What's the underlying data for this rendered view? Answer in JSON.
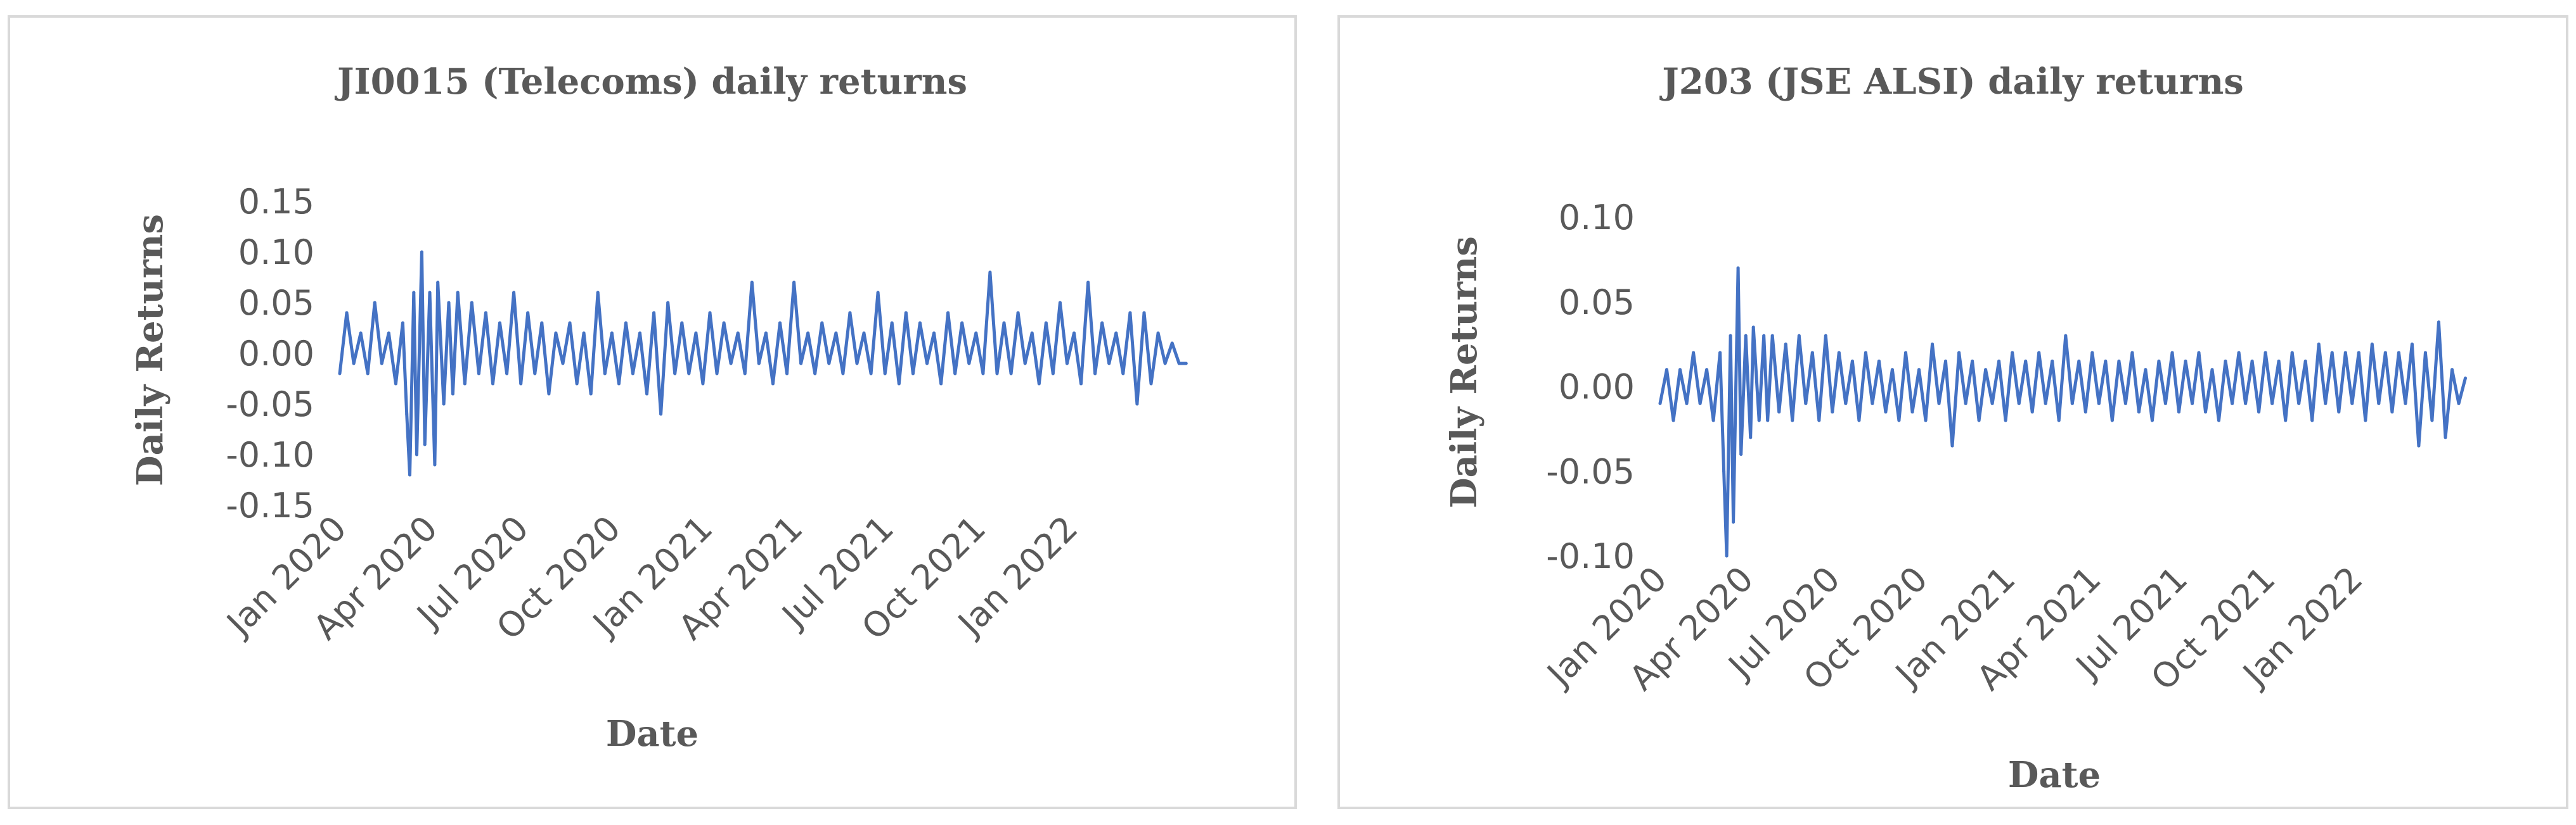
{
  "chart_data": [
    {
      "type": "line",
      "title": "JI0015 (Telecoms) daily returns",
      "xlabel": "Date",
      "ylabel": "Daily Returns",
      "ylim": [
        -0.15,
        0.15
      ],
      "yticks": [
        "0.15",
        "0.10",
        "0.05",
        "0.00",
        "-0.05",
        "-0.10",
        "-0.15"
      ],
      "xticks": [
        "Jan 2020",
        "Apr 2020",
        "Jul 2020",
        "Oct 2020",
        "Jan 2021",
        "Apr 2021",
        "Jul 2021",
        "Oct 2021",
        "Jan 2022"
      ],
      "xlim": [
        "2020-01-02",
        "2022-04-30"
      ],
      "color": "#4472c4",
      "series": [
        {
          "x": [
            "2020-01-02",
            "2020-01-09",
            "2020-01-16",
            "2020-01-23",
            "2020-01-30",
            "2020-02-06",
            "2020-02-13",
            "2020-02-20",
            "2020-02-27",
            "2020-03-05",
            "2020-03-09",
            "2020-03-12",
            "2020-03-16",
            "2020-03-19",
            "2020-03-24",
            "2020-03-27",
            "2020-04-01",
            "2020-04-06",
            "2020-04-09",
            "2020-04-15",
            "2020-04-20",
            "2020-04-24",
            "2020-04-29",
            "2020-05-06",
            "2020-05-13",
            "2020-05-20",
            "2020-05-27",
            "2020-06-03",
            "2020-06-10",
            "2020-06-17",
            "2020-06-24",
            "2020-07-01",
            "2020-07-08",
            "2020-07-15",
            "2020-07-22",
            "2020-07-29",
            "2020-08-05",
            "2020-08-12",
            "2020-08-19",
            "2020-08-26",
            "2020-09-02",
            "2020-09-09",
            "2020-09-16",
            "2020-09-23",
            "2020-09-30",
            "2020-10-07",
            "2020-10-14",
            "2020-10-21",
            "2020-10-28",
            "2020-11-04",
            "2020-11-11",
            "2020-11-18",
            "2020-11-25",
            "2020-12-02",
            "2020-12-09",
            "2020-12-16",
            "2020-12-23",
            "2020-12-30",
            "2021-01-06",
            "2021-01-13",
            "2021-01-20",
            "2021-01-27",
            "2021-02-03",
            "2021-02-10",
            "2021-02-17",
            "2021-02-24",
            "2021-03-03",
            "2021-03-10",
            "2021-03-17",
            "2021-03-24",
            "2021-03-31",
            "2021-04-07",
            "2021-04-14",
            "2021-04-21",
            "2021-04-28",
            "2021-05-05",
            "2021-05-12",
            "2021-05-19",
            "2021-05-26",
            "2021-06-02",
            "2021-06-09",
            "2021-06-16",
            "2021-06-23",
            "2021-06-30",
            "2021-07-07",
            "2021-07-14",
            "2021-07-21",
            "2021-07-28",
            "2021-08-04",
            "2021-08-11",
            "2021-08-18",
            "2021-08-25",
            "2021-09-01",
            "2021-09-08",
            "2021-09-15",
            "2021-09-22",
            "2021-09-29",
            "2021-10-06",
            "2021-10-13",
            "2021-10-20",
            "2021-10-27",
            "2021-11-03",
            "2021-11-10",
            "2021-11-17",
            "2021-11-24",
            "2021-12-01",
            "2021-12-08",
            "2021-12-15",
            "2021-12-22",
            "2021-12-29",
            "2022-01-05",
            "2022-01-12",
            "2022-01-19",
            "2022-01-26",
            "2022-02-02",
            "2022-02-09",
            "2022-02-16",
            "2022-02-23",
            "2022-03-02",
            "2022-03-09",
            "2022-03-16",
            "2022-03-23",
            "2022-03-30",
            "2022-04-06",
            "2022-04-13",
            "2022-04-20",
            "2022-04-27"
          ],
          "y": [
            -0.02,
            0.04,
            -0.01,
            0.02,
            -0.02,
            0.05,
            -0.01,
            0.02,
            -0.03,
            0.03,
            -0.06,
            -0.12,
            0.06,
            -0.1,
            0.1,
            -0.09,
            0.06,
            -0.11,
            0.07,
            -0.05,
            0.05,
            -0.04,
            0.06,
            -0.03,
            0.05,
            -0.02,
            0.04,
            -0.03,
            0.03,
            -0.02,
            0.06,
            -0.03,
            0.04,
            -0.02,
            0.03,
            -0.04,
            0.02,
            -0.01,
            0.03,
            -0.03,
            0.02,
            -0.04,
            0.06,
            -0.02,
            0.02,
            -0.03,
            0.03,
            -0.02,
            0.02,
            -0.04,
            0.04,
            -0.06,
            0.05,
            -0.02,
            0.03,
            -0.02,
            0.02,
            -0.03,
            0.04,
            -0.02,
            0.03,
            -0.01,
            0.02,
            -0.02,
            0.07,
            -0.01,
            0.02,
            -0.03,
            0.03,
            -0.02,
            0.07,
            -0.01,
            0.02,
            -0.02,
            0.03,
            -0.01,
            0.02,
            -0.02,
            0.04,
            -0.01,
            0.02,
            -0.02,
            0.06,
            -0.02,
            0.03,
            -0.03,
            0.04,
            -0.02,
            0.03,
            -0.01,
            0.02,
            -0.03,
            0.04,
            -0.02,
            0.03,
            -0.01,
            0.02,
            -0.02,
            0.08,
            -0.02,
            0.03,
            -0.02,
            0.04,
            -0.01,
            0.02,
            -0.03,
            0.03,
            -0.02,
            0.05,
            -0.01,
            0.02,
            -0.03,
            0.07,
            -0.02,
            0.03,
            -0.01,
            0.02,
            -0.02,
            0.04,
            -0.05,
            0.04,
            -0.03,
            0.02,
            -0.01,
            0.01,
            -0.01,
            -0.01
          ]
        }
      ]
    },
    {
      "type": "line",
      "title": "J203 (JSE ALSI) daily returns",
      "xlabel": "Date",
      "ylabel": "Daily Returns",
      "ylim": [
        -0.1,
        0.1
      ],
      "yticks": [
        "0.10",
        "0.05",
        "0.00",
        "-0.05",
        "-0.10"
      ],
      "xticks": [
        "Jan 2020",
        "Apr 2020",
        "Jul 2020",
        "Oct 2020",
        "Jan 2021",
        "Apr 2021",
        "Jul 2021",
        "Oct 2021",
        "Jan 2022"
      ],
      "xlim": [
        "2020-01-02",
        "2022-04-30"
      ],
      "color": "#4472c4",
      "series": [
        {
          "x": [
            "2020-01-02",
            "2020-01-09",
            "2020-01-16",
            "2020-01-23",
            "2020-01-30",
            "2020-02-06",
            "2020-02-13",
            "2020-02-20",
            "2020-02-27",
            "2020-03-05",
            "2020-03-09",
            "2020-03-12",
            "2020-03-16",
            "2020-03-19",
            "2020-03-24",
            "2020-03-27",
            "2020-04-01",
            "2020-04-06",
            "2020-04-09",
            "2020-04-15",
            "2020-04-20",
            "2020-04-24",
            "2020-04-29",
            "2020-05-06",
            "2020-05-13",
            "2020-05-20",
            "2020-05-27",
            "2020-06-03",
            "2020-06-10",
            "2020-06-17",
            "2020-06-24",
            "2020-07-01",
            "2020-07-08",
            "2020-07-15",
            "2020-07-22",
            "2020-07-29",
            "2020-08-05",
            "2020-08-12",
            "2020-08-19",
            "2020-08-26",
            "2020-09-02",
            "2020-09-09",
            "2020-09-16",
            "2020-09-23",
            "2020-09-30",
            "2020-10-07",
            "2020-10-14",
            "2020-10-21",
            "2020-10-28",
            "2020-11-04",
            "2020-11-11",
            "2020-11-18",
            "2020-11-25",
            "2020-12-02",
            "2020-12-09",
            "2020-12-16",
            "2020-12-23",
            "2020-12-30",
            "2021-01-06",
            "2021-01-13",
            "2021-01-20",
            "2021-01-27",
            "2021-02-03",
            "2021-02-10",
            "2021-02-17",
            "2021-02-24",
            "2021-03-03",
            "2021-03-10",
            "2021-03-17",
            "2021-03-24",
            "2021-03-31",
            "2021-04-07",
            "2021-04-14",
            "2021-04-21",
            "2021-04-28",
            "2021-05-05",
            "2021-05-12",
            "2021-05-19",
            "2021-05-26",
            "2021-06-02",
            "2021-06-09",
            "2021-06-16",
            "2021-06-23",
            "2021-06-30",
            "2021-07-07",
            "2021-07-14",
            "2021-07-21",
            "2021-07-28",
            "2021-08-04",
            "2021-08-11",
            "2021-08-18",
            "2021-08-25",
            "2021-09-01",
            "2021-09-08",
            "2021-09-15",
            "2021-09-22",
            "2021-09-29",
            "2021-10-06",
            "2021-10-13",
            "2021-10-20",
            "2021-10-27",
            "2021-11-03",
            "2021-11-10",
            "2021-11-17",
            "2021-11-24",
            "2021-12-01",
            "2021-12-08",
            "2021-12-15",
            "2021-12-22",
            "2021-12-29",
            "2022-01-05",
            "2022-01-12",
            "2022-01-19",
            "2022-01-26",
            "2022-02-02",
            "2022-02-09",
            "2022-02-16",
            "2022-02-23",
            "2022-03-02",
            "2022-03-09",
            "2022-03-16",
            "2022-03-23",
            "2022-03-30",
            "2022-04-06",
            "2022-04-13",
            "2022-04-20",
            "2022-04-27"
          ],
          "y": [
            -0.01,
            0.01,
            -0.02,
            0.01,
            -0.01,
            0.02,
            -0.01,
            0.01,
            -0.02,
            0.02,
            -0.05,
            -0.1,
            0.03,
            -0.08,
            0.07,
            -0.04,
            0.03,
            -0.03,
            0.035,
            -0.02,
            0.03,
            -0.02,
            0.03,
            -0.015,
            0.025,
            -0.02,
            0.03,
            -0.01,
            0.02,
            -0.02,
            0.03,
            -0.015,
            0.02,
            -0.01,
            0.015,
            -0.02,
            0.02,
            -0.01,
            0.015,
            -0.015,
            0.01,
            -0.02,
            0.02,
            -0.015,
            0.01,
            -0.02,
            0.025,
            -0.01,
            0.015,
            -0.035,
            0.02,
            -0.01,
            0.015,
            -0.02,
            0.01,
            -0.01,
            0.015,
            -0.02,
            0.02,
            -0.01,
            0.015,
            -0.015,
            0.02,
            -0.01,
            0.015,
            -0.02,
            0.03,
            -0.01,
            0.015,
            -0.015,
            0.02,
            -0.01,
            0.015,
            -0.02,
            0.015,
            -0.01,
            0.02,
            -0.015,
            0.01,
            -0.02,
            0.015,
            -0.01,
            0.02,
            -0.015,
            0.015,
            -0.01,
            0.02,
            -0.015,
            0.01,
            -0.02,
            0.015,
            -0.01,
            0.02,
            -0.01,
            0.015,
            -0.015,
            0.02,
            -0.01,
            0.015,
            -0.02,
            0.02,
            -0.01,
            0.015,
            -0.02,
            0.025,
            -0.01,
            0.02,
            -0.015,
            0.02,
            -0.01,
            0.02,
            -0.02,
            0.025,
            -0.01,
            0.02,
            -0.015,
            0.02,
            -0.01,
            0.025,
            -0.035,
            0.02,
            -0.02,
            0.038,
            -0.03,
            0.01,
            -0.01,
            0.005
          ]
        }
      ]
    }
  ]
}
